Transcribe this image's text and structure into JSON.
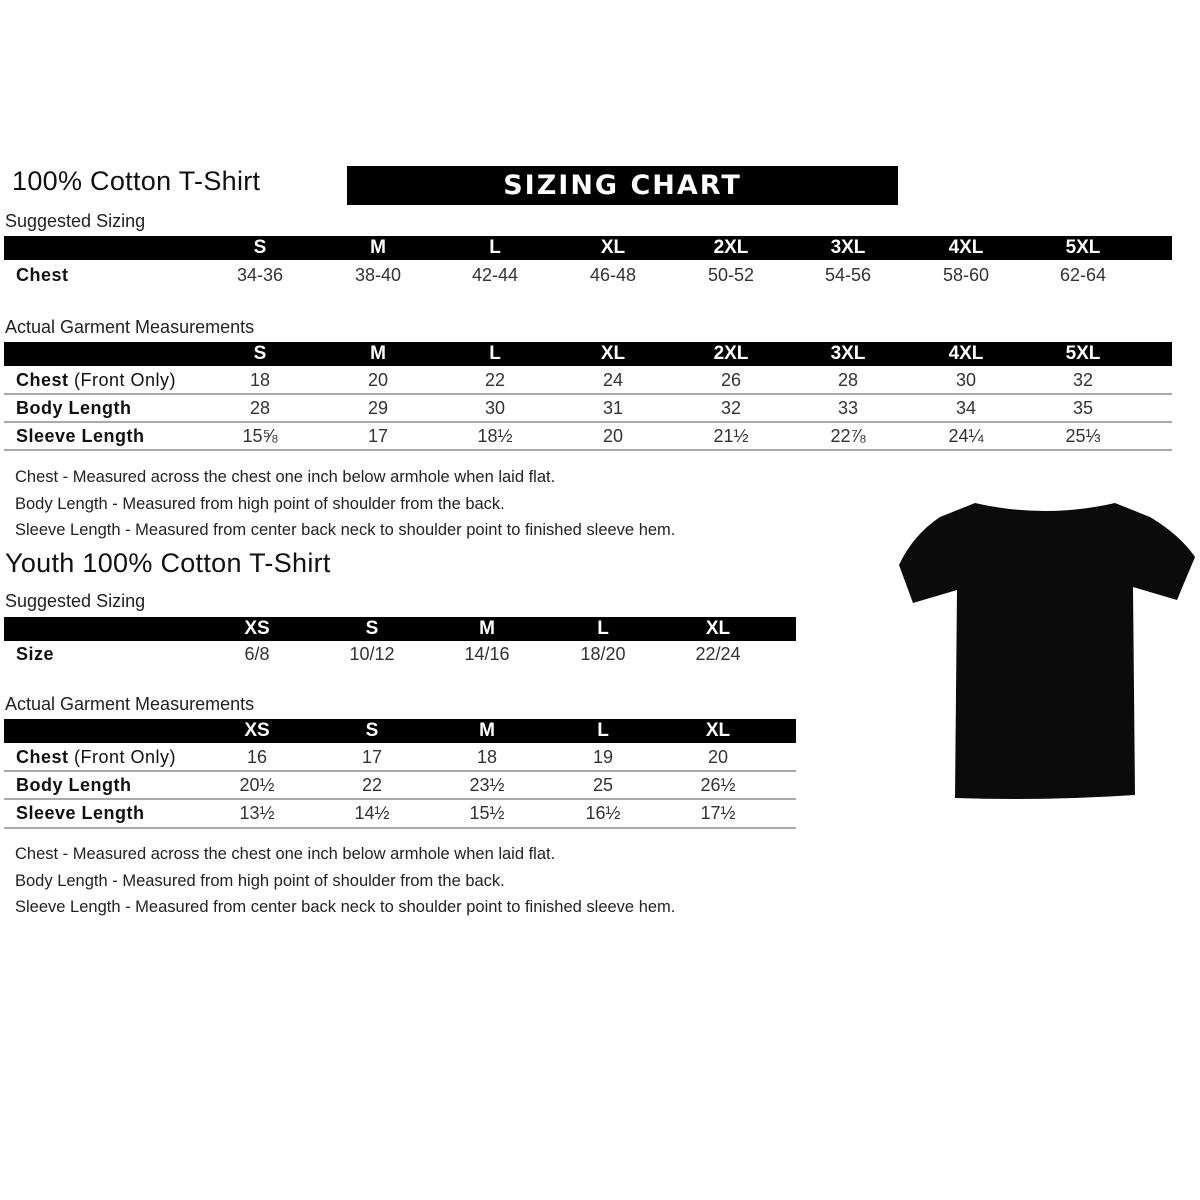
{
  "adult": {
    "title": "100% Cotton T-Shirt",
    "banner": "SIZING CHART",
    "suggested_label": "Suggested Sizing",
    "sizes": [
      "S",
      "M",
      "L",
      "XL",
      "2XL",
      "3XL",
      "4XL",
      "5XL"
    ],
    "suggested_rows": [
      {
        "label": "Chest",
        "values": [
          "34-36",
          "38-40",
          "42-44",
          "46-48",
          "50-52",
          "54-56",
          "58-60",
          "62-64"
        ]
      }
    ],
    "actual_label": "Actual Garment Measurements",
    "actual_rows": [
      {
        "label": "Chest",
        "label_note": " (Front Only)",
        "values": [
          "18",
          "20",
          "22",
          "24",
          "26",
          "28",
          "30",
          "32"
        ]
      },
      {
        "label": "Body Length",
        "label_note": "",
        "values": [
          "28",
          "29",
          "30",
          "31",
          "32",
          "33",
          "34",
          "35"
        ]
      },
      {
        "label": "Sleeve Length",
        "label_note": "",
        "values": [
          "15⅝",
          "17",
          "18½",
          "20",
          "21½",
          "22⅞",
          "24¼",
          "25⅓"
        ]
      }
    ],
    "notes": [
      "Chest - Measured across the chest one inch below armhole when laid flat.",
      "Body Length - Measured from high point of shoulder from the back.",
      "Sleeve Length - Measured from center back neck to shoulder point to finished sleeve hem."
    ]
  },
  "youth": {
    "title": "Youth 100% Cotton T-Shirt",
    "suggested_label": "Suggested Sizing",
    "sizes": [
      "XS",
      "S",
      "M",
      "L",
      "XL"
    ],
    "suggested_rows": [
      {
        "label": "Size",
        "values": [
          "6/8",
          "10/12",
          "14/16",
          "18/20",
          "22/24"
        ]
      }
    ],
    "actual_label": "Actual Garment Measurements",
    "actual_rows": [
      {
        "label": "Chest",
        "label_note": " (Front Only)",
        "values": [
          "16",
          "17",
          "18",
          "19",
          "20"
        ]
      },
      {
        "label": "Body Length",
        "label_note": "",
        "values": [
          "20½",
          "22",
          "23½",
          "25",
          "26½"
        ]
      },
      {
        "label": "Sleeve Length",
        "label_note": "",
        "values": [
          "13½",
          "14½",
          "15½",
          "16½",
          "17½"
        ]
      }
    ],
    "notes": [
      "Chest - Measured across the chest one inch below armhole when laid flat.",
      "Body Length - Measured from high point of shoulder from the back.",
      "Sleeve Length - Measured from center back neck to shoulder point to finished sleeve hem."
    ]
  },
  "image": {
    "shirt_color": "#0b0b0b"
  }
}
